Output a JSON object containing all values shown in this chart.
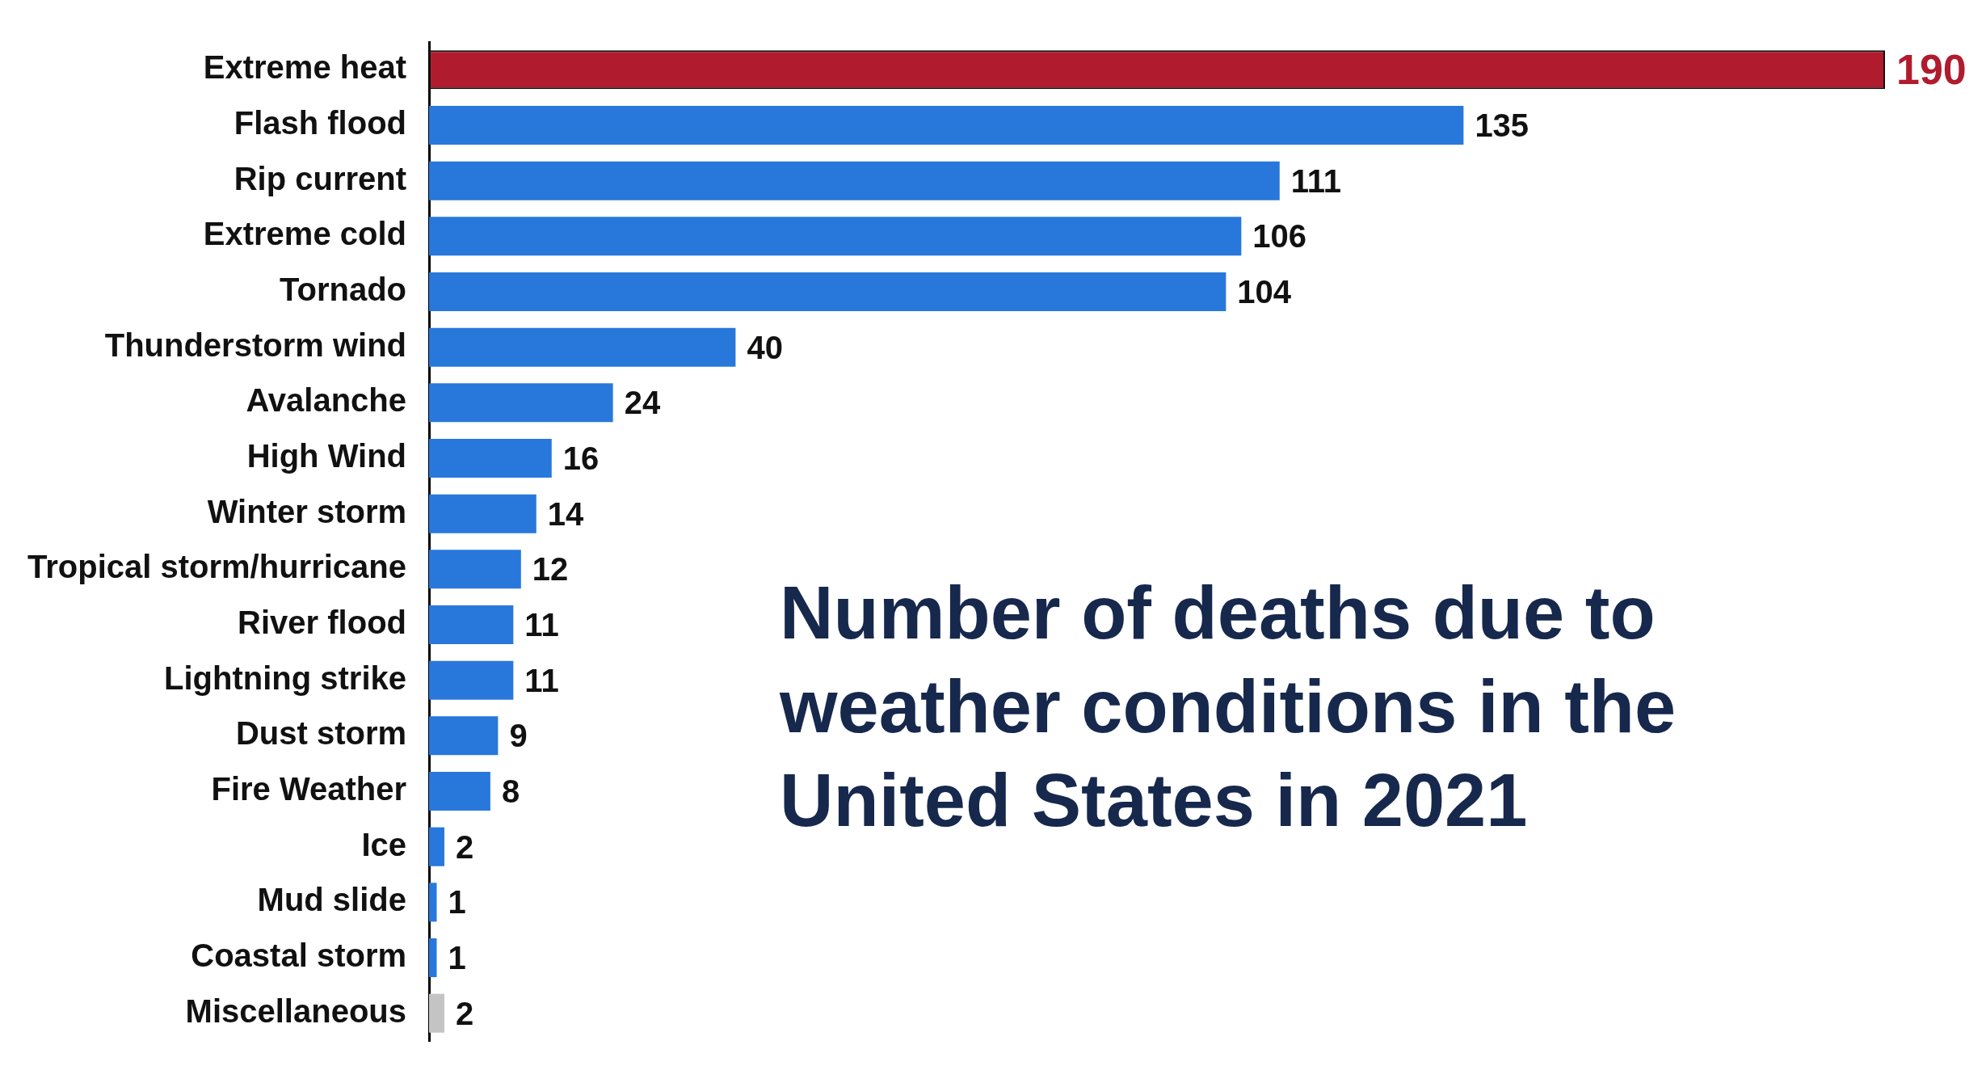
{
  "chart_data": {
    "type": "bar",
    "orientation": "horizontal",
    "title": "Number of deaths due to weather conditions in the United States in 2021",
    "categories": [
      "Extreme heat",
      "Flash flood",
      "Rip current",
      "Extreme cold",
      "Tornado",
      "Thunderstorm wind",
      "Avalanche",
      "High Wind",
      "Winter storm",
      "Tropical storm/hurricane",
      "River flood",
      "Lightning strike",
      "Dust storm",
      "Fire Weather",
      "Ice",
      "Mud slide",
      "Coastal storm",
      "Miscellaneous"
    ],
    "values": [
      190,
      135,
      111,
      106,
      104,
      40,
      24,
      16,
      14,
      12,
      11,
      11,
      9,
      8,
      2,
      1,
      1,
      2
    ],
    "colors": [
      "#b01c2e",
      "#2878dc",
      "#2878dc",
      "#2878dc",
      "#2878dc",
      "#2878dc",
      "#2878dc",
      "#2878dc",
      "#2878dc",
      "#2878dc",
      "#2878dc",
      "#2878dc",
      "#2878dc",
      "#2878dc",
      "#2878dc",
      "#2878dc",
      "#2878dc",
      "#c4c4c4"
    ],
    "data_labels": true
  }
}
